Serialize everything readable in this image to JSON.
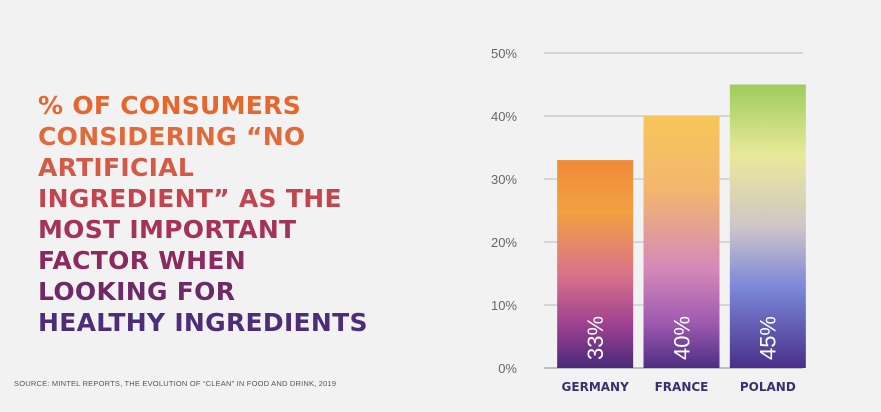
{
  "headline": {
    "lines": [
      "% OF CONSUMERS",
      "CONSIDERING “NO",
      "ARTIFICIAL",
      "INGREDIENT” AS THE",
      "MOST IMPORTANT",
      "FACTOR WHEN",
      "LOOKING FOR",
      "HEALTHY INGREDIENTS"
    ],
    "colors": [
      "#e8652b",
      "#e06a3a",
      "#d45a45",
      "#c2444e",
      "#a53358",
      "#8a2a5e",
      "#6e2a66",
      "#4e2d78"
    ]
  },
  "source": "SOURCE: MINTEL REPORTS, THE EVOLUTION OF “CLEAN” IN FOOD AND DRINK, 2019",
  "chart_data": {
    "type": "bar",
    "categories": [
      "GERMANY",
      "FRANCE",
      "POLAND"
    ],
    "values": [
      33,
      40,
      45
    ],
    "value_labels": [
      "33%",
      "40%",
      "45%"
    ],
    "title": "% of consumers considering “no artificial ingredient” as the most important factor when looking for healthy ingredients",
    "xlabel": "",
    "ylabel": "",
    "ylim": [
      0,
      50
    ],
    "yticks": [
      0,
      10,
      20,
      30,
      40,
      50
    ],
    "ytick_labels": [
      "0%",
      "10%",
      "20%",
      "30%",
      "40%",
      "50%"
    ],
    "grid": true
  }
}
